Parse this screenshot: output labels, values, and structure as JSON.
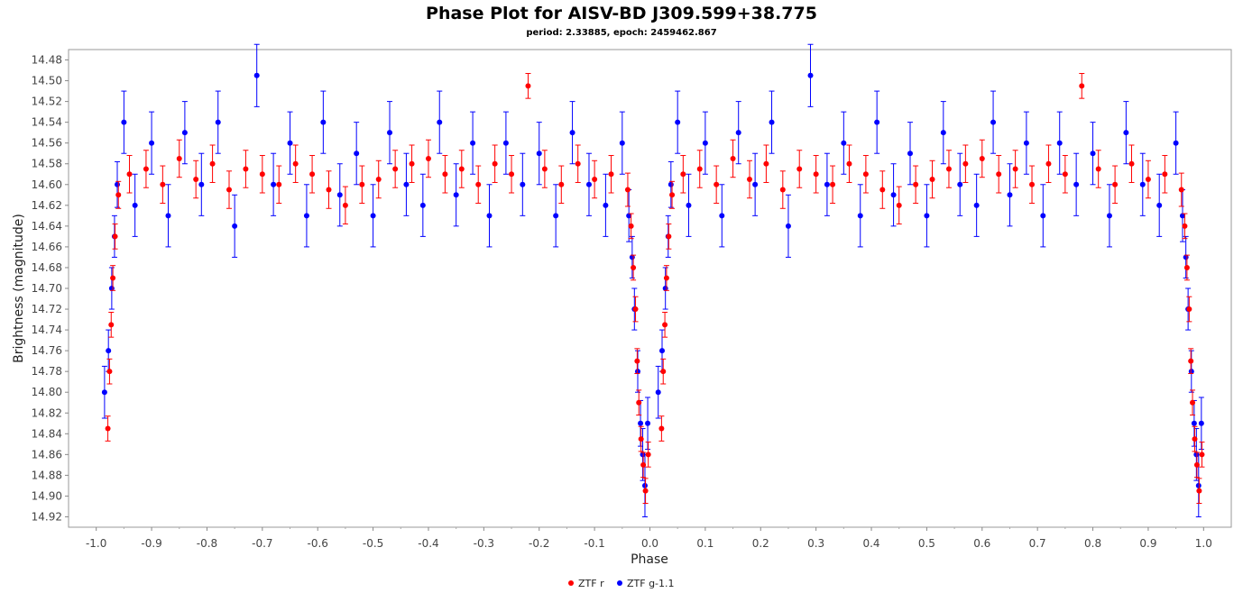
{
  "chart_data": {
    "type": "scatter",
    "title": "Phase Plot for AISV-BD J309.599+38.775",
    "subtitle": "period: 2.33885, epoch: 2459462.867",
    "xlabel": "Phase",
    "ylabel": "Brightness (magnitude)",
    "xlim": [
      -1.05,
      1.05
    ],
    "ylim": [
      14.47,
      14.93
    ],
    "y_inverted": true,
    "x_ticks": [
      "-1.0",
      "-0.9",
      "-0.8",
      "-0.7",
      "-0.6",
      "-0.5",
      "-0.4",
      "-0.3",
      "-0.2",
      "-0.1",
      "0.0",
      "0.1",
      "0.2",
      "0.3",
      "0.4",
      "0.5",
      "0.6",
      "0.7",
      "0.8",
      "0.9",
      "1.0"
    ],
    "y_ticks": [
      "14.48",
      "14.50",
      "14.52",
      "14.54",
      "14.56",
      "14.58",
      "14.60",
      "14.62",
      "14.64",
      "14.66",
      "14.68",
      "14.70",
      "14.72",
      "14.74",
      "14.76",
      "14.78",
      "14.80",
      "14.82",
      "14.84",
      "14.86",
      "14.88",
      "14.90",
      "14.92"
    ],
    "grid": false,
    "legend_position": "bottom-center",
    "error_bars": true,
    "series": [
      {
        "name": "ZTF r",
        "color": "#ff0000",
        "points_per_cycle": [
          {
            "x": 0.021,
            "y": 14.835,
            "err": 0.012
          },
          {
            "x": 0.024,
            "y": 14.78,
            "err": 0.012
          },
          {
            "x": 0.027,
            "y": 14.735,
            "err": 0.012
          },
          {
            "x": 0.03,
            "y": 14.69,
            "err": 0.012
          },
          {
            "x": 0.034,
            "y": 14.65,
            "err": 0.012
          },
          {
            "x": 0.04,
            "y": 14.61,
            "err": 0.013
          },
          {
            "x": 0.06,
            "y": 14.59,
            "err": 0.018
          },
          {
            "x": 0.09,
            "y": 14.585,
            "err": 0.018
          },
          {
            "x": 0.12,
            "y": 14.6,
            "err": 0.018
          },
          {
            "x": 0.15,
            "y": 14.575,
            "err": 0.018
          },
          {
            "x": 0.18,
            "y": 14.595,
            "err": 0.018
          },
          {
            "x": 0.21,
            "y": 14.58,
            "err": 0.018
          },
          {
            "x": 0.24,
            "y": 14.605,
            "err": 0.018
          },
          {
            "x": 0.27,
            "y": 14.585,
            "err": 0.018
          },
          {
            "x": 0.3,
            "y": 14.59,
            "err": 0.018
          },
          {
            "x": 0.33,
            "y": 14.6,
            "err": 0.018
          },
          {
            "x": 0.36,
            "y": 14.58,
            "err": 0.018
          },
          {
            "x": 0.39,
            "y": 14.59,
            "err": 0.018
          },
          {
            "x": 0.42,
            "y": 14.605,
            "err": 0.018
          },
          {
            "x": 0.45,
            "y": 14.62,
            "err": 0.018
          },
          {
            "x": 0.48,
            "y": 14.6,
            "err": 0.018
          },
          {
            "x": 0.51,
            "y": 14.595,
            "err": 0.018
          },
          {
            "x": 0.54,
            "y": 14.585,
            "err": 0.018
          },
          {
            "x": 0.57,
            "y": 14.58,
            "err": 0.018
          },
          {
            "x": 0.6,
            "y": 14.575,
            "err": 0.018
          },
          {
            "x": 0.63,
            "y": 14.59,
            "err": 0.018
          },
          {
            "x": 0.66,
            "y": 14.585,
            "err": 0.018
          },
          {
            "x": 0.69,
            "y": 14.6,
            "err": 0.018
          },
          {
            "x": 0.72,
            "y": 14.58,
            "err": 0.018
          },
          {
            "x": 0.75,
            "y": 14.59,
            "err": 0.018
          },
          {
            "x": 0.78,
            "y": 14.505,
            "err": 0.012
          },
          {
            "x": 0.81,
            "y": 14.585,
            "err": 0.018
          },
          {
            "x": 0.84,
            "y": 14.6,
            "err": 0.018
          },
          {
            "x": 0.87,
            "y": 14.58,
            "err": 0.018
          },
          {
            "x": 0.9,
            "y": 14.595,
            "err": 0.018
          },
          {
            "x": 0.93,
            "y": 14.59,
            "err": 0.018
          },
          {
            "x": 0.96,
            "y": 14.605,
            "err": 0.016
          },
          {
            "x": 0.966,
            "y": 14.64,
            "err": 0.012
          },
          {
            "x": 0.97,
            "y": 14.68,
            "err": 0.012
          },
          {
            "x": 0.974,
            "y": 14.72,
            "err": 0.012
          },
          {
            "x": 0.977,
            "y": 14.77,
            "err": 0.012
          },
          {
            "x": 0.98,
            "y": 14.81,
            "err": 0.012
          },
          {
            "x": 0.984,
            "y": 14.845,
            "err": 0.012
          },
          {
            "x": 0.988,
            "y": 14.87,
            "err": 0.012
          },
          {
            "x": 0.992,
            "y": 14.895,
            "err": 0.012
          },
          {
            "x": 0.997,
            "y": 14.86,
            "err": 0.012
          }
        ]
      },
      {
        "name": "ZTF g-1.1",
        "color": "#0000ff",
        "points_per_cycle": [
          {
            "x": 0.015,
            "y": 14.8,
            "err": 0.025
          },
          {
            "x": 0.022,
            "y": 14.76,
            "err": 0.02
          },
          {
            "x": 0.028,
            "y": 14.7,
            "err": 0.02
          },
          {
            "x": 0.033,
            "y": 14.65,
            "err": 0.02
          },
          {
            "x": 0.038,
            "y": 14.6,
            "err": 0.022
          },
          {
            "x": 0.05,
            "y": 14.54,
            "err": 0.03
          },
          {
            "x": 0.07,
            "y": 14.62,
            "err": 0.03
          },
          {
            "x": 0.1,
            "y": 14.56,
            "err": 0.03
          },
          {
            "x": 0.13,
            "y": 14.63,
            "err": 0.03
          },
          {
            "x": 0.16,
            "y": 14.55,
            "err": 0.03
          },
          {
            "x": 0.19,
            "y": 14.6,
            "err": 0.03
          },
          {
            "x": 0.22,
            "y": 14.54,
            "err": 0.03
          },
          {
            "x": 0.25,
            "y": 14.64,
            "err": 0.03
          },
          {
            "x": 0.29,
            "y": 14.495,
            "err": 0.03
          },
          {
            "x": 0.32,
            "y": 14.6,
            "err": 0.03
          },
          {
            "x": 0.35,
            "y": 14.56,
            "err": 0.03
          },
          {
            "x": 0.38,
            "y": 14.63,
            "err": 0.03
          },
          {
            "x": 0.41,
            "y": 14.54,
            "err": 0.03
          },
          {
            "x": 0.44,
            "y": 14.61,
            "err": 0.03
          },
          {
            "x": 0.47,
            "y": 14.57,
            "err": 0.03
          },
          {
            "x": 0.5,
            "y": 14.63,
            "err": 0.03
          },
          {
            "x": 0.53,
            "y": 14.55,
            "err": 0.03
          },
          {
            "x": 0.56,
            "y": 14.6,
            "err": 0.03
          },
          {
            "x": 0.59,
            "y": 14.62,
            "err": 0.03
          },
          {
            "x": 0.62,
            "y": 14.54,
            "err": 0.03
          },
          {
            "x": 0.65,
            "y": 14.61,
            "err": 0.03
          },
          {
            "x": 0.68,
            "y": 14.56,
            "err": 0.03
          },
          {
            "x": 0.71,
            "y": 14.63,
            "err": 0.03
          },
          {
            "x": 0.74,
            "y": 14.56,
            "err": 0.03
          },
          {
            "x": 0.77,
            "y": 14.6,
            "err": 0.03
          },
          {
            "x": 0.8,
            "y": 14.57,
            "err": 0.03
          },
          {
            "x": 0.83,
            "y": 14.63,
            "err": 0.03
          },
          {
            "x": 0.86,
            "y": 14.55,
            "err": 0.03
          },
          {
            "x": 0.89,
            "y": 14.6,
            "err": 0.03
          },
          {
            "x": 0.92,
            "y": 14.62,
            "err": 0.03
          },
          {
            "x": 0.95,
            "y": 14.56,
            "err": 0.03
          },
          {
            "x": 0.962,
            "y": 14.63,
            "err": 0.025
          },
          {
            "x": 0.968,
            "y": 14.67,
            "err": 0.02
          },
          {
            "x": 0.972,
            "y": 14.72,
            "err": 0.02
          },
          {
            "x": 0.978,
            "y": 14.78,
            "err": 0.02
          },
          {
            "x": 0.983,
            "y": 14.83,
            "err": 0.022
          },
          {
            "x": 0.987,
            "y": 14.86,
            "err": 0.025
          },
          {
            "x": 0.991,
            "y": 14.89,
            "err": 0.03
          },
          {
            "x": 0.996,
            "y": 14.83,
            "err": 0.025
          }
        ]
      }
    ]
  },
  "legend": {
    "items": [
      {
        "label": "ZTF r",
        "color": "#ff0000"
      },
      {
        "label": "ZTF g-1.1",
        "color": "#0000ff"
      }
    ]
  }
}
